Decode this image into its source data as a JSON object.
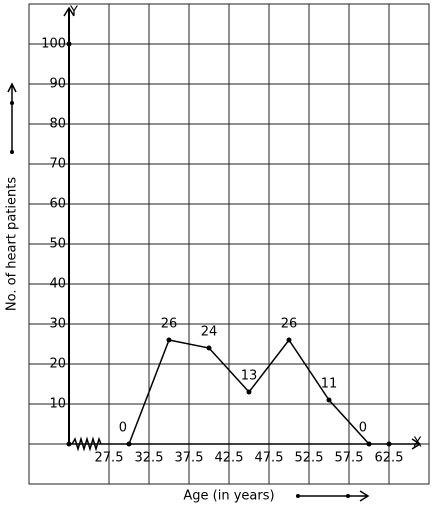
{
  "chart_data": {
    "type": "line",
    "x_label": "Age (in years)",
    "y_label": "No. of heart patients",
    "x_axis_name": "X",
    "y_axis_name": "Y",
    "x": [
      30,
      35,
      40,
      45,
      50,
      55,
      60
    ],
    "series": [
      {
        "color": "#000000",
        "values": [
          0,
          26,
          24,
          13,
          26,
          11,
          0
        ]
      }
    ],
    "xlim": [
      17.5,
      67.5
    ],
    "ylim": [
      -10,
      110
    ],
    "xticks": [
      27.5,
      32.5,
      37.5,
      42.5,
      47.5,
      52.5,
      57.5,
      62.5
    ],
    "yticks": [
      10,
      20,
      30,
      40,
      50,
      60,
      70,
      80,
      90,
      100
    ],
    "grid": true
  }
}
